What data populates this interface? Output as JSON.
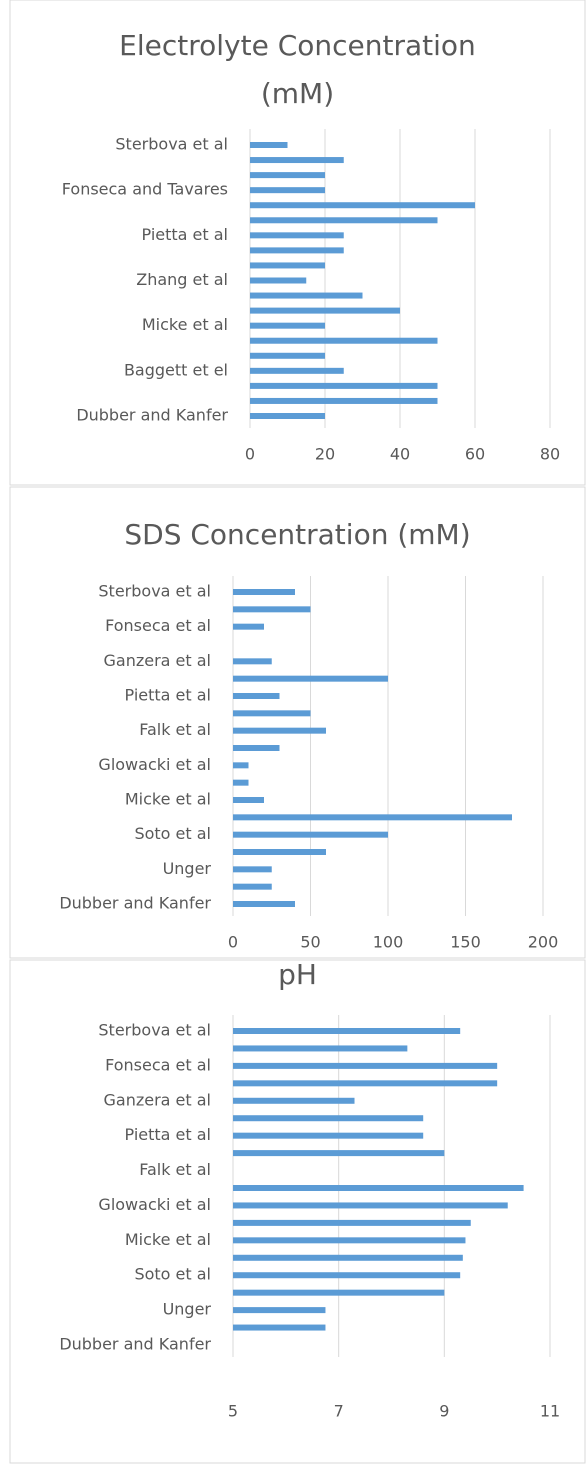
{
  "chart_data": [
    {
      "type": "bar",
      "orientation": "horizontal",
      "title": "Electrolyte Concentration (mM)",
      "color": "#5b9bd5",
      "grid": true,
      "categories": [
        "Sterbova et al",
        null,
        null,
        "Fonseca and Tavares",
        null,
        null,
        "Pietta et al",
        null,
        null,
        "Zhang et al",
        null,
        null,
        "Micke et al",
        null,
        null,
        "Baggett et el",
        null,
        null,
        "Dubber and Kanfer"
      ],
      "values": [
        10,
        25,
        20,
        20,
        60,
        50,
        25,
        25,
        20,
        15,
        30,
        40,
        20,
        50,
        20,
        25,
        50,
        50,
        20
      ],
      "xlim": [
        0,
        80
      ],
      "xticks": [
        0,
        20,
        40,
        60,
        80
      ]
    },
    {
      "type": "bar",
      "orientation": "horizontal",
      "title": "SDS Concentration (mM)",
      "color": "#5b9bd5",
      "grid": true,
      "categories": [
        "Sterbova et al",
        null,
        "Fonseca et al",
        null,
        "Ganzera et al",
        null,
        "Pietta et al",
        null,
        "Falk et al",
        null,
        "Glowacki et al",
        null,
        "Micke et al",
        null,
        "Soto et al",
        null,
        "Unger",
        null,
        "Dubber and Kanfer"
      ],
      "values": [
        40,
        50,
        20,
        null,
        25,
        100,
        30,
        50,
        60,
        30,
        10,
        10,
        20,
        180,
        100,
        60,
        25,
        25,
        40
      ],
      "xlim": [
        0,
        200
      ],
      "xticks": [
        0,
        50,
        100,
        150,
        200
      ]
    },
    {
      "type": "bar",
      "orientation": "horizontal",
      "title": "pH",
      "color": "#5b9bd5",
      "grid": true,
      "categories": [
        "Sterbova et al",
        null,
        "Fonseca et al",
        null,
        "Ganzera et al",
        null,
        "Pietta et al",
        null,
        "Falk et al",
        null,
        "Glowacki et al",
        null,
        "Micke et al",
        null,
        "Soto et al",
        null,
        "Unger",
        null,
        "Dubber and Kanfer"
      ],
      "values": [
        9.3,
        8.3,
        10,
        10,
        7.3,
        8.6,
        8.6,
        9,
        null,
        10.5,
        10.2,
        9.5,
        9.4,
        9.35,
        9.3,
        9,
        6.75,
        6.75,
        null
      ],
      "xlim": [
        5,
        11
      ],
      "xticks": [
        5,
        7,
        9,
        11
      ]
    }
  ]
}
